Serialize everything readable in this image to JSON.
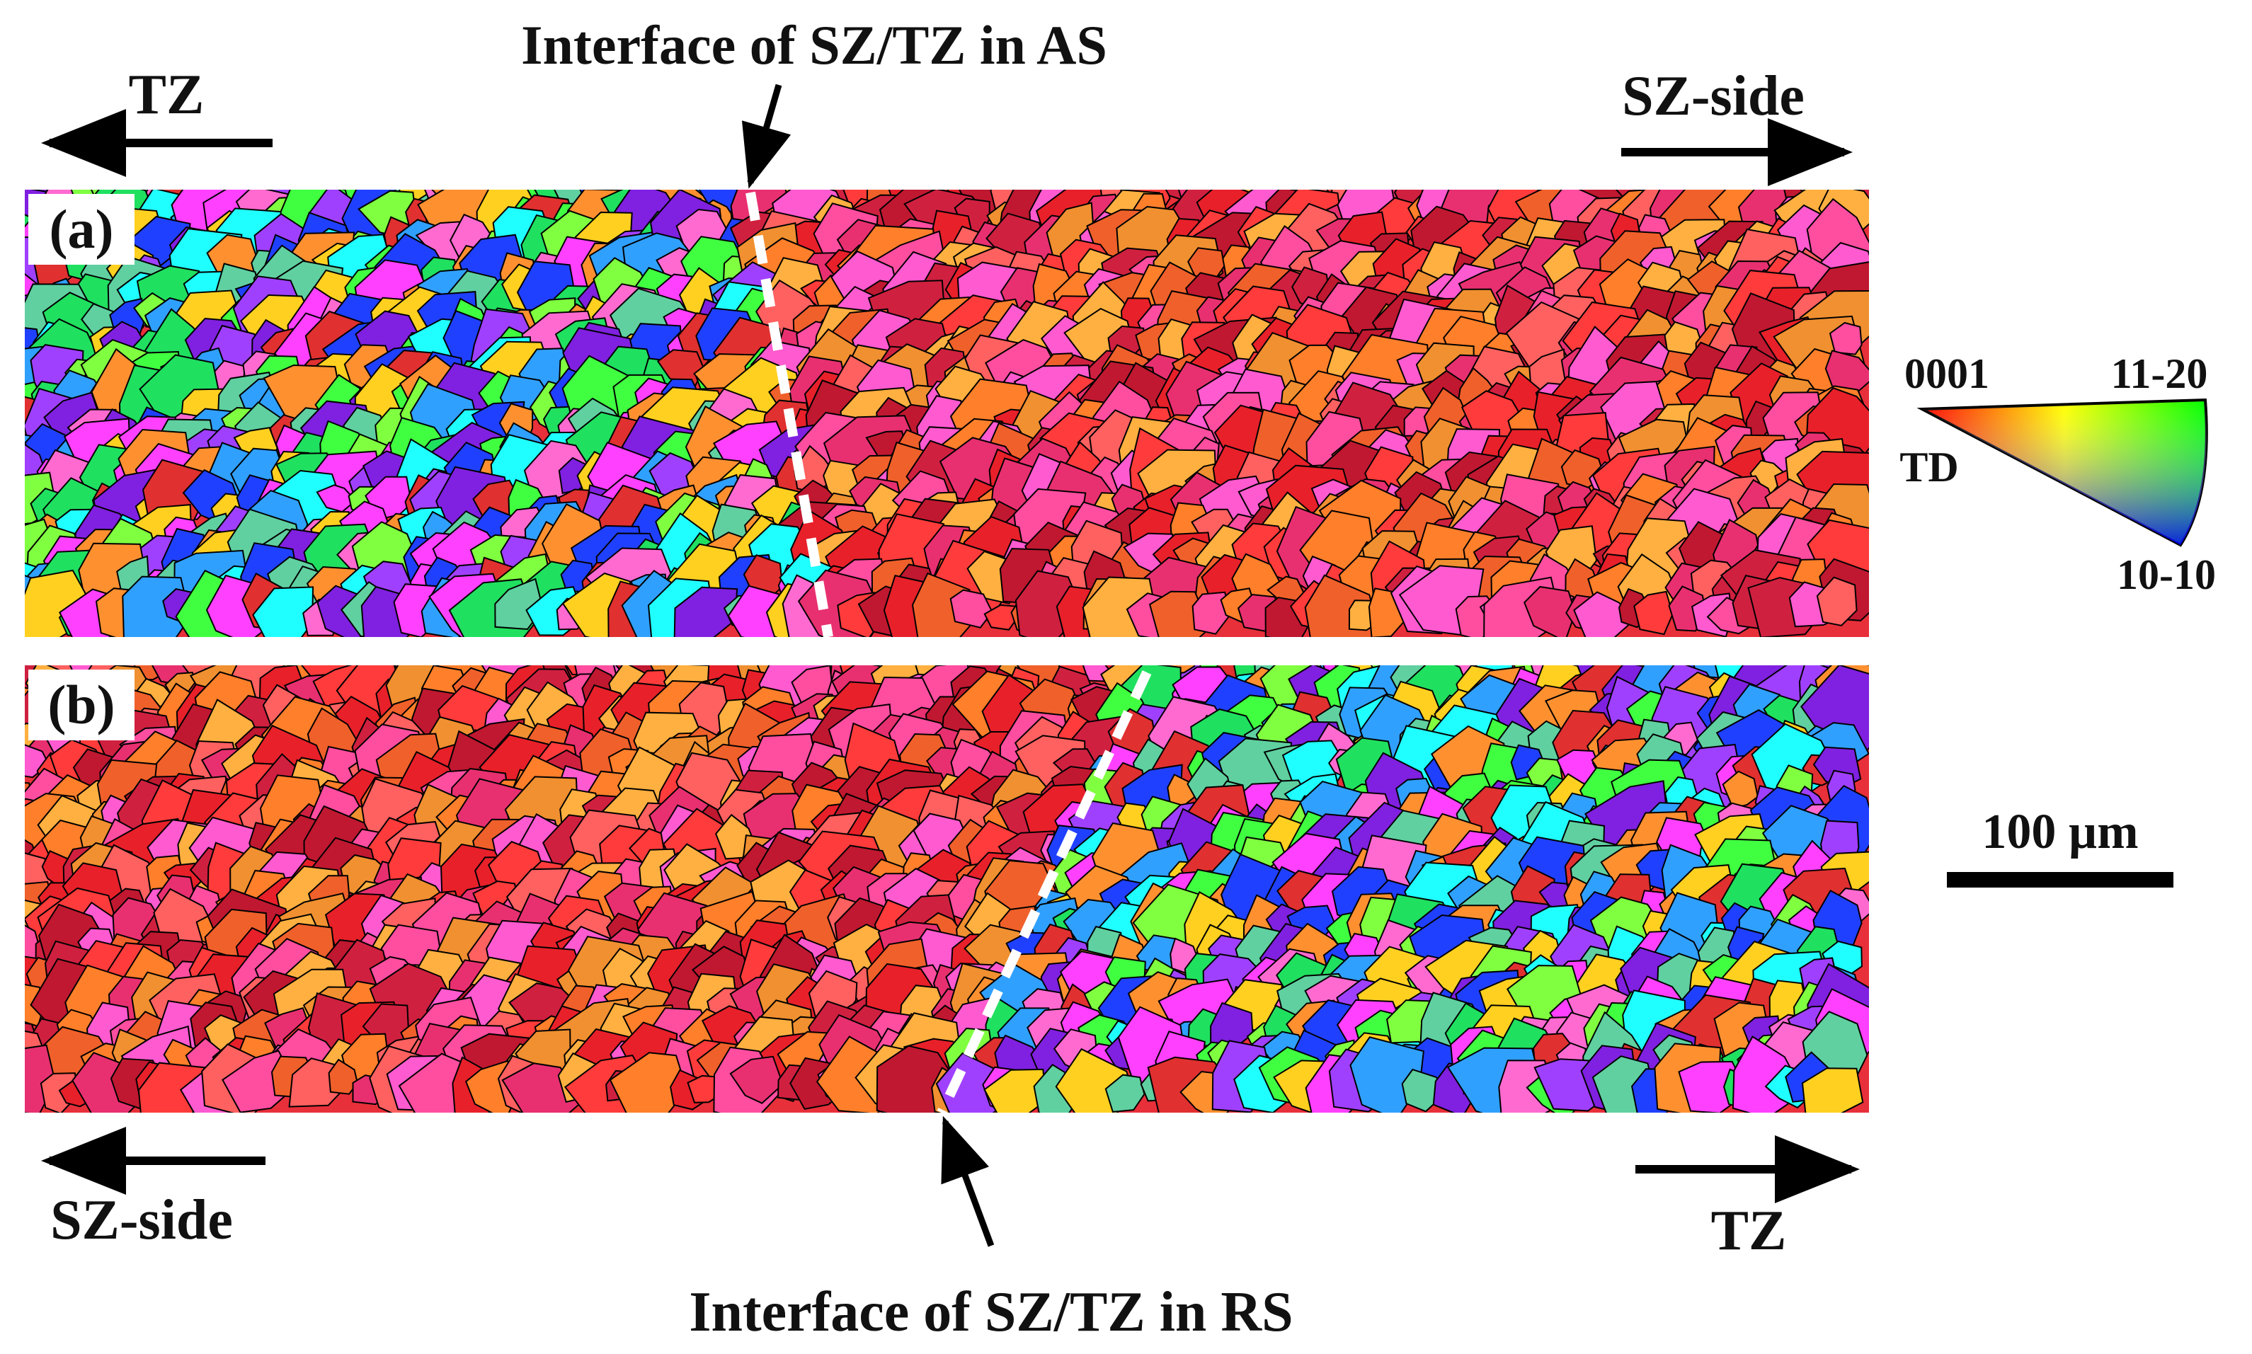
{
  "figure": {
    "top_label_as": "Interface of SZ/TZ in AS",
    "bottom_label_rs": "Interface of SZ/TZ in RS",
    "panel_a": {
      "tag": "(a)",
      "arrow_left": "TZ",
      "arrow_right": "SZ-side"
    },
    "panel_b": {
      "tag": "(b)",
      "arrow_left": "SZ-side",
      "arrow_right": "TZ"
    },
    "legend": {
      "corner_0001": "0001",
      "corner_1120": "11-20",
      "corner_1010": "10-10",
      "axis": "TD",
      "colors": {
        "0001": "#ff0000",
        "11-20": "#00ff00",
        "10-10": "#0000ff"
      }
    },
    "scale_bar": {
      "label": "100 µm"
    },
    "colors": {
      "grain_boundary": "#000000",
      "interface_line": "#ffffff",
      "text": "#111111"
    }
  }
}
